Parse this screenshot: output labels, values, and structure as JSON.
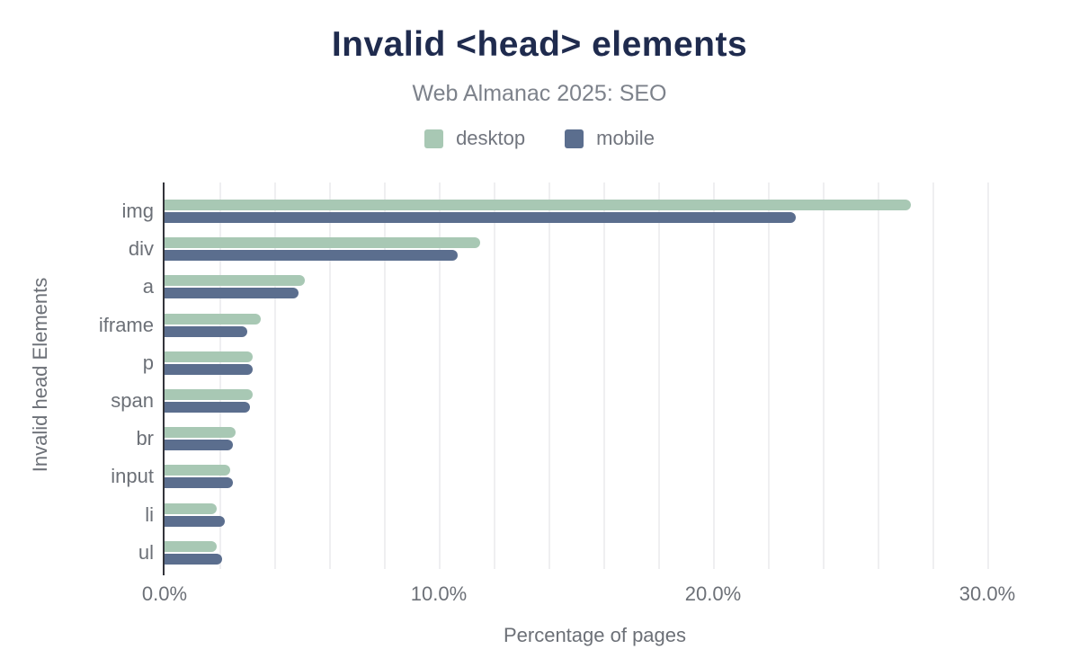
{
  "header": {
    "title": "Invalid <head> elements",
    "subtitle": "Web Almanac 2025: SEO"
  },
  "chart_data": {
    "type": "bar",
    "orientation": "horizontal",
    "title": "Invalid <head> elements",
    "subtitle": "Web Almanac 2025: SEO",
    "categories": [
      "img",
      "div",
      "a",
      "iframe",
      "p",
      "span",
      "br",
      "input",
      "li",
      "ul"
    ],
    "series": [
      {
        "name": "desktop",
        "color": "#a8c8b4",
        "values": [
          27.2,
          11.5,
          5.1,
          3.5,
          3.2,
          3.2,
          2.6,
          2.4,
          1.9,
          1.9
        ]
      },
      {
        "name": "mobile",
        "color": "#5b6e8e",
        "values": [
          23.0,
          10.7,
          4.9,
          3.0,
          3.2,
          3.1,
          2.5,
          2.5,
          2.2,
          2.1
        ]
      }
    ],
    "xlabel": "Percentage of pages",
    "ylabel": "Invalid head Elements",
    "x_ticks": [
      "0.0%",
      "10.0%",
      "20.0%",
      "30.0%"
    ],
    "x_tick_values": [
      0,
      10,
      20,
      30
    ],
    "xlim": [
      0,
      31.4
    ],
    "grid_step": 2,
    "grid": true,
    "legend_position": "top"
  },
  "colors": {
    "desktop": "#a8c8b4",
    "mobile": "#5b6e8e",
    "title_text": "#1f2b4e",
    "muted_text": "#6c7077",
    "gridline": "#efeff1",
    "axis_line": "#33343b",
    "background": "#ffffff"
  }
}
